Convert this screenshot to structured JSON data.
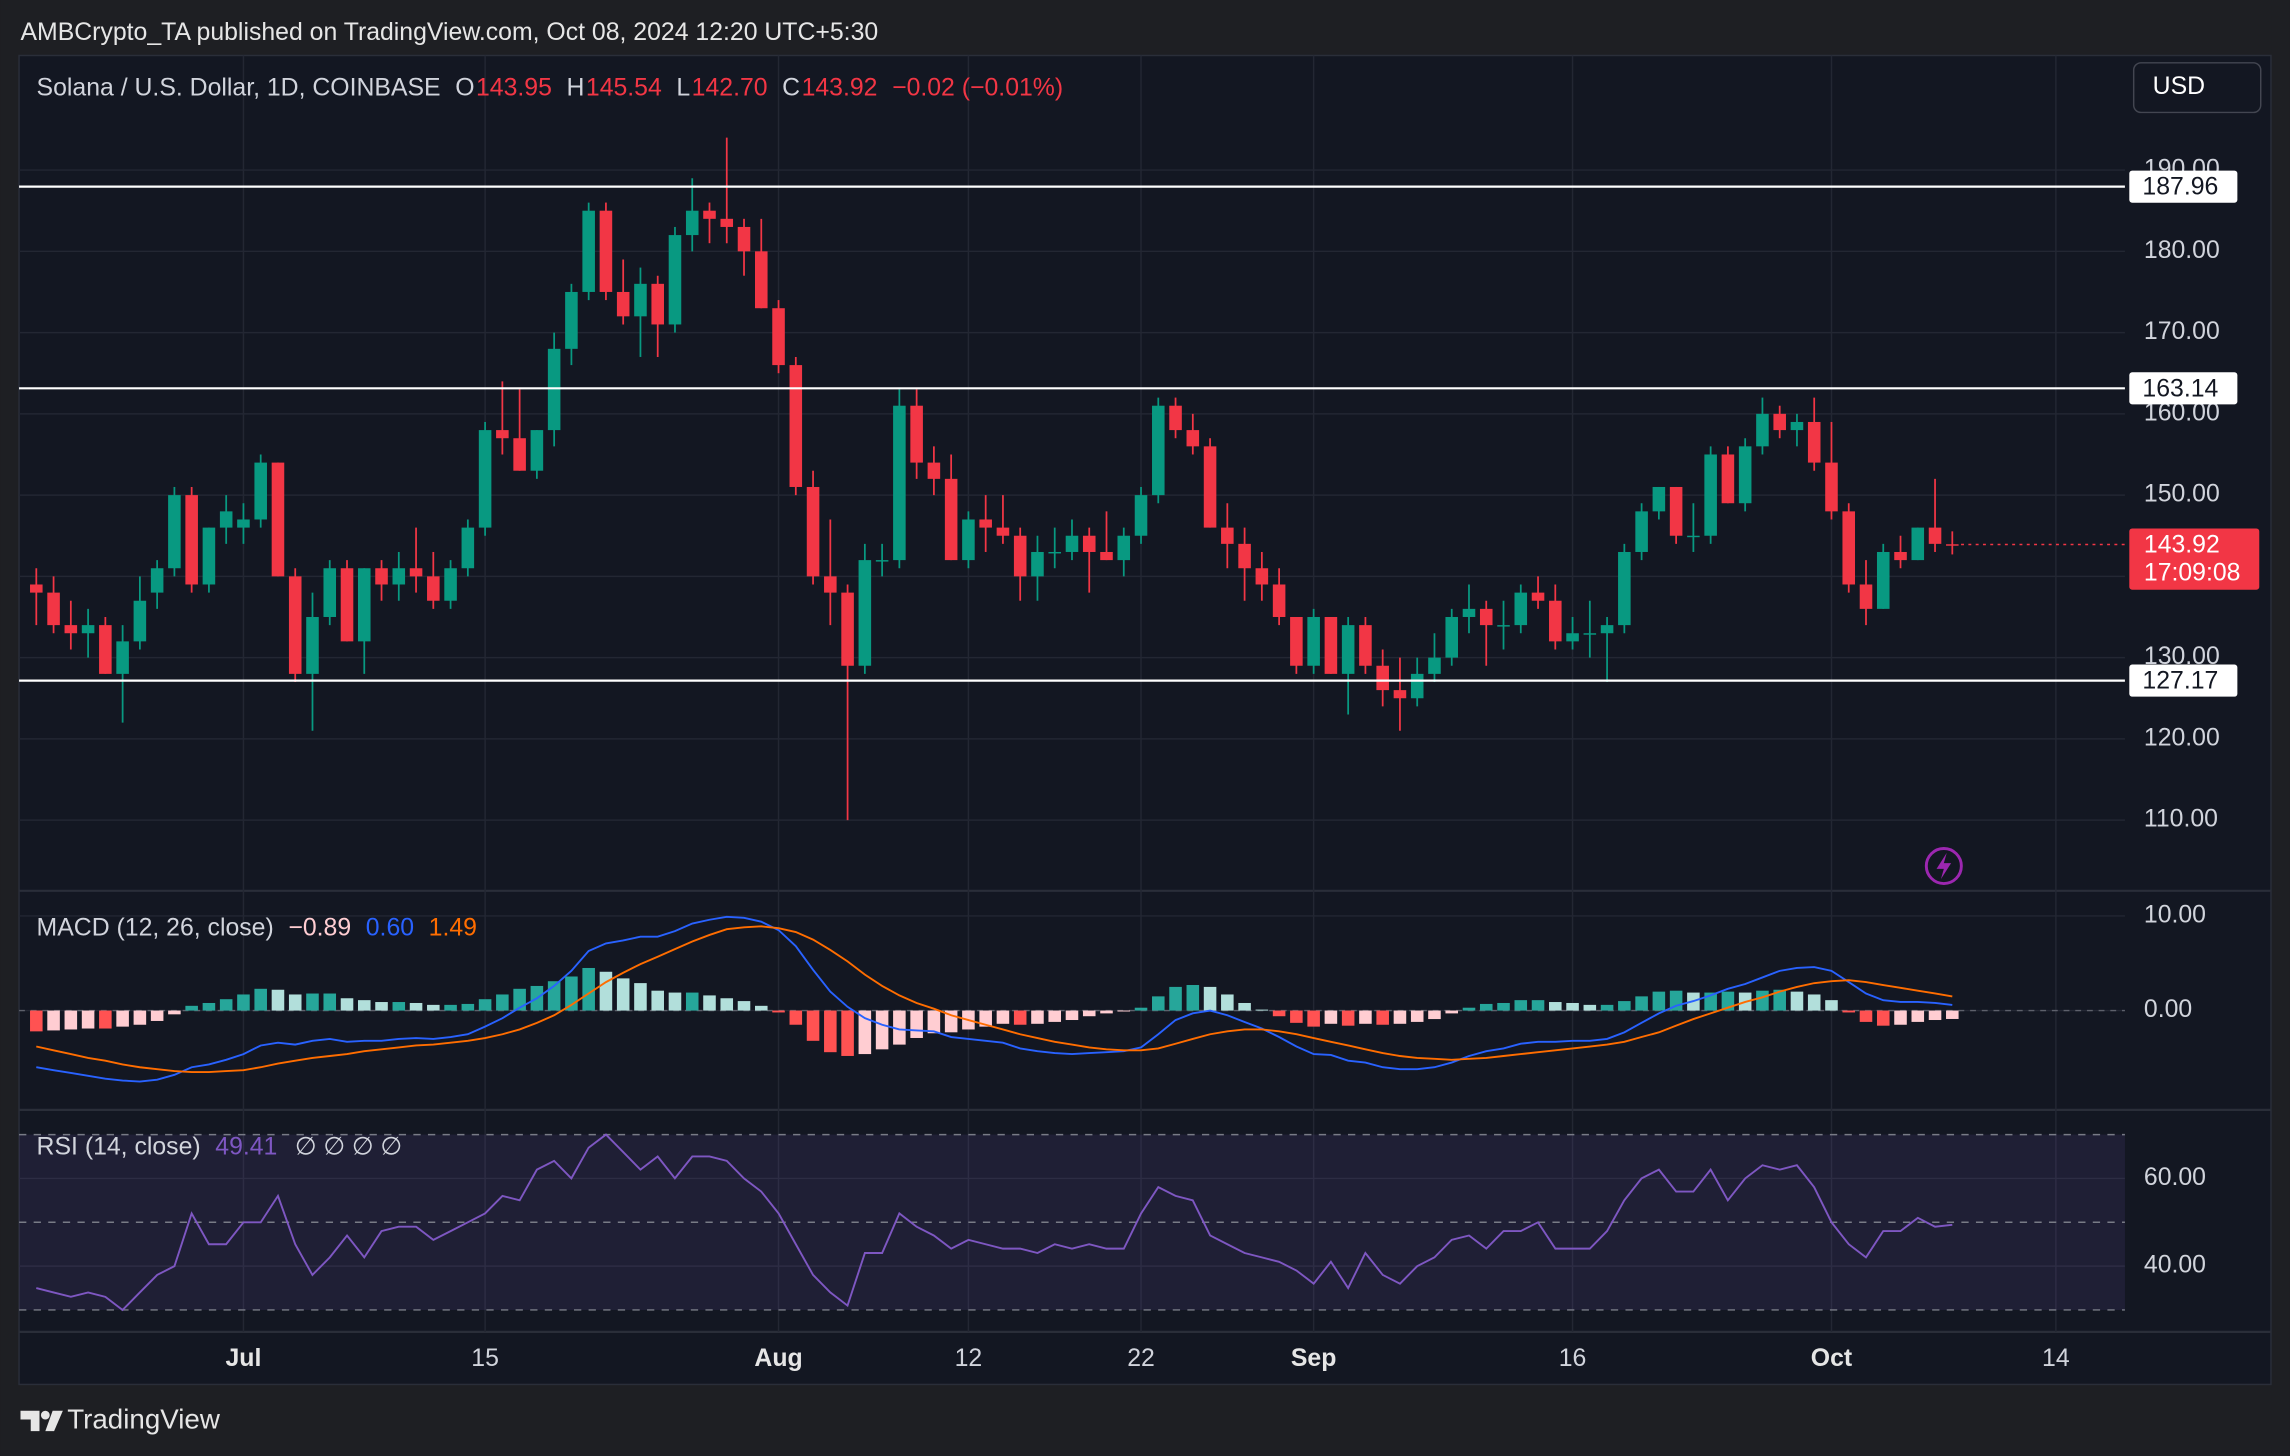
{
  "header": "AMBCrypto_TA published on TradingView.com, Oct 08, 2024 12:20 UTC+5:30",
  "currency_button": "USD",
  "brand": "TradingView",
  "chart_data": [
    {
      "type": "candlestick",
      "legend": {
        "symbol": "Solana / U.S. Dollar, 1D, COINBASE",
        "fields": [
          {
            "key": "O",
            "label": "143.95"
          },
          {
            "key": "H",
            "label": "145.54"
          },
          {
            "key": "L",
            "label": "142.70"
          },
          {
            "key": "C",
            "label": "143.92"
          }
        ],
        "change": "−0.02 (−0.01%)",
        "value_color": "#f23645"
      },
      "x": [
        "2024-06-19",
        "2024-06-20",
        "2024-06-21",
        "2024-06-22",
        "2024-06-23",
        "2024-06-24",
        "2024-06-25",
        "2024-06-26",
        "2024-06-27",
        "2024-06-28",
        "2024-06-29",
        "2024-06-30",
        "2024-07-01",
        "2024-07-02",
        "2024-07-03",
        "2024-07-04",
        "2024-07-05",
        "2024-07-06",
        "2024-07-07",
        "2024-07-08",
        "2024-07-09",
        "2024-07-10",
        "2024-07-11",
        "2024-07-12",
        "2024-07-13",
        "2024-07-14",
        "2024-07-15",
        "2024-07-16",
        "2024-07-17",
        "2024-07-18",
        "2024-07-19",
        "2024-07-20",
        "2024-07-21",
        "2024-07-22",
        "2024-07-23",
        "2024-07-24",
        "2024-07-25",
        "2024-07-26",
        "2024-07-27",
        "2024-07-28",
        "2024-07-29",
        "2024-07-30",
        "2024-07-31",
        "2024-08-01",
        "2024-08-02",
        "2024-08-03",
        "2024-08-04",
        "2024-08-05",
        "2024-08-06",
        "2024-08-07",
        "2024-08-08",
        "2024-08-09",
        "2024-08-10",
        "2024-08-11",
        "2024-08-12",
        "2024-08-13",
        "2024-08-14",
        "2024-08-15",
        "2024-08-16",
        "2024-08-17",
        "2024-08-18",
        "2024-08-19",
        "2024-08-20",
        "2024-08-21",
        "2024-08-22",
        "2024-08-23",
        "2024-08-24",
        "2024-08-25",
        "2024-08-26",
        "2024-08-27",
        "2024-08-28",
        "2024-08-29",
        "2024-08-30",
        "2024-08-31",
        "2024-09-01",
        "2024-09-02",
        "2024-09-03",
        "2024-09-04",
        "2024-09-05",
        "2024-09-06",
        "2024-09-07",
        "2024-09-08",
        "2024-09-09",
        "2024-09-10",
        "2024-09-11",
        "2024-09-12",
        "2024-09-13",
        "2024-09-14",
        "2024-09-15",
        "2024-09-16",
        "2024-09-17",
        "2024-09-18",
        "2024-09-19",
        "2024-09-20",
        "2024-09-21",
        "2024-09-22",
        "2024-09-23",
        "2024-09-24",
        "2024-09-25",
        "2024-09-26",
        "2024-09-27",
        "2024-09-28",
        "2024-09-29",
        "2024-09-30",
        "2024-10-01",
        "2024-10-02",
        "2024-10-03",
        "2024-10-04",
        "2024-10-05",
        "2024-10-06",
        "2024-10-07",
        "2024-10-08"
      ],
      "open": [
        139,
        138,
        134,
        133,
        134,
        128,
        132,
        138,
        141,
        150,
        139,
        146,
        146,
        147,
        154,
        140,
        128,
        135,
        141,
        132,
        141,
        139,
        141,
        140,
        137,
        141,
        146,
        158,
        157,
        153,
        158,
        168,
        175,
        185,
        175,
        172,
        176,
        171,
        182,
        185,
        184,
        183,
        180,
        173,
        166,
        151,
        140,
        138,
        129,
        142,
        142,
        161,
        154,
        152,
        142,
        147,
        146,
        145,
        140,
        143,
        143,
        145,
        143,
        142,
        145,
        150,
        161,
        158,
        156,
        146,
        144,
        141,
        139,
        135,
        129,
        135,
        128,
        134,
        129,
        126,
        125,
        128,
        130,
        135,
        136,
        134,
        134,
        138,
        137,
        132,
        133,
        133,
        134,
        143,
        148,
        151,
        145,
        145,
        155,
        149,
        156,
        160,
        158,
        159,
        154,
        148,
        139,
        136,
        143,
        142,
        146,
        143.95
      ],
      "high": [
        141,
        140,
        137,
        136,
        135,
        134,
        140,
        142,
        151,
        151,
        146,
        150,
        149,
        155,
        154,
        141,
        138,
        142,
        142,
        141,
        142,
        143,
        146,
        143,
        142,
        147,
        159,
        164,
        163,
        158,
        170,
        176,
        186,
        186,
        179,
        178,
        177,
        183,
        189,
        186,
        194,
        184,
        184,
        174,
        167,
        153,
        147,
        139,
        144,
        144,
        163,
        163,
        156,
        155,
        148,
        150,
        150,
        146,
        145,
        146,
        147,
        146,
        148,
        146,
        151,
        162,
        162,
        160,
        157,
        149,
        146,
        143,
        141,
        135,
        136,
        135,
        135,
        135,
        131,
        130,
        130,
        133,
        136,
        139,
        137,
        137,
        139,
        140,
        139,
        135,
        137,
        135,
        144,
        149,
        151,
        151,
        149,
        156,
        156,
        157,
        162,
        161,
        160,
        162,
        159,
        149,
        142,
        144,
        145,
        146,
        152,
        145.54
      ],
      "low": [
        134,
        133,
        131,
        130,
        128,
        122,
        131,
        136,
        140,
        138,
        138,
        144,
        144,
        146,
        140,
        127,
        121,
        134,
        132,
        128,
        137,
        137,
        138,
        136,
        136,
        140,
        145,
        155,
        153,
        152,
        156,
        166,
        174,
        174,
        171,
        167,
        167,
        170,
        180,
        181,
        181,
        177,
        173,
        165,
        150,
        139,
        134,
        110,
        128,
        140,
        141,
        152,
        150,
        142,
        141,
        143,
        144,
        137,
        137,
        141,
        142,
        138,
        142,
        140,
        144,
        149,
        157,
        155,
        146,
        141,
        137,
        137,
        134,
        128,
        128,
        128,
        123,
        128,
        124,
        121,
        124,
        127,
        129,
        133,
        129,
        131,
        133,
        136,
        131,
        131,
        130,
        127,
        133,
        142,
        147,
        144,
        143,
        144,
        149,
        148,
        155,
        157,
        156,
        153,
        147,
        138,
        134,
        136,
        141,
        142,
        143,
        142.7
      ],
      "close": [
        138,
        134,
        133,
        134,
        128,
        132,
        137,
        141,
        150,
        139,
        146,
        148,
        147,
        154,
        140,
        128,
        135,
        141,
        132,
        141,
        139,
        141,
        140,
        137,
        141,
        146,
        158,
        157,
        153,
        158,
        168,
        175,
        185,
        175,
        172,
        176,
        171,
        182,
        185,
        184,
        183,
        180,
        173,
        166,
        151,
        140,
        138,
        129,
        142,
        142,
        161,
        154,
        152,
        142,
        147,
        146,
        145,
        140,
        143,
        143,
        145,
        143,
        142,
        145,
        150,
        161,
        158,
        156,
        146,
        144,
        141,
        139,
        135,
        129,
        135,
        128,
        134,
        129,
        126,
        125,
        128,
        130,
        135,
        136,
        134,
        134,
        138,
        137,
        132,
        133,
        133,
        134,
        143,
        148,
        151,
        145,
        145,
        155,
        149,
        156,
        160,
        158,
        159,
        154,
        148,
        139,
        136,
        143,
        142,
        146,
        144,
        143.92
      ],
      "up_color": "#089981",
      "down_color": "#f23645",
      "countdown": "17:09:08",
      "levels": [
        187.96,
        163.14,
        127.17
      ],
      "level_color": "#ffffff",
      "xlim": [
        "2024-06-18",
        "2024-10-18"
      ],
      "xticks": [
        {
          "value": "2024-07-01",
          "label": "Jul"
        },
        {
          "value": "2024-07-15",
          "label": "15"
        },
        {
          "value": "2024-08-01",
          "label": "Aug"
        },
        {
          "value": "2024-08-12",
          "label": "12"
        },
        {
          "value": "2024-08-22",
          "label": "22"
        },
        {
          "value": "2024-09-01",
          "label": "Sep"
        },
        {
          "value": "2024-09-16",
          "label": "16"
        },
        {
          "value": "2024-10-01",
          "label": "Oct"
        },
        {
          "value": "2024-10-14",
          "label": "14"
        }
      ],
      "ylim": [
        101.3,
        204.1
      ],
      "yticks": [
        {
          "value": 110,
          "label": "110.00"
        },
        {
          "value": 120,
          "label": "120.00"
        },
        {
          "value": 130,
          "label": "130.00"
        },
        {
          "value": 140,
          "label": "140.00"
        },
        {
          "value": 150,
          "label": "150.00"
        },
        {
          "value": 160,
          "label": "160.00"
        },
        {
          "value": 170,
          "label": "170.00"
        },
        {
          "value": 180,
          "label": "180.00"
        },
        {
          "value": 190,
          "label": "190.00"
        }
      ],
      "grid": true
    },
    {
      "type": "macd",
      "title": "MACD (12, 26, close)",
      "legend_labels": [
        "−0.89",
        "0.60",
        "1.49"
      ],
      "series": [
        {
          "colors": [
            "#26a69a",
            "#b2dfdb",
            "#ff5252",
            "#ffcdd2"
          ],
          "values": [
            -2.2,
            -2.1,
            -2.0,
            -1.9,
            -1.9,
            -1.7,
            -1.5,
            -1.1,
            -0.4,
            0.5,
            0.8,
            1.2,
            1.7,
            2.3,
            2.2,
            1.7,
            1.8,
            1.8,
            1.3,
            1.1,
            0.9,
            0.9,
            0.8,
            0.6,
            0.6,
            0.7,
            1.2,
            1.7,
            2.3,
            2.6,
            3.1,
            3.6,
            4.5,
            4.1,
            3.4,
            2.9,
            2.1,
            1.9,
            1.9,
            1.6,
            1.3,
            1.0,
            0.5,
            -0.2,
            -1.5,
            -3.2,
            -4.4,
            -4.8,
            -4.6,
            -4.1,
            -3.6,
            -2.9,
            -2.4,
            -2.3,
            -2.0,
            -1.7,
            -1.4,
            -1.5,
            -1.4,
            -1.2,
            -1.0,
            -0.6,
            -0.3,
            -0.1,
            0.3,
            1.5,
            2.5,
            2.7,
            2.5,
            1.7,
            0.8,
            0.1,
            -0.6,
            -1.3,
            -1.7,
            -1.4,
            -1.6,
            -1.4,
            -1.5,
            -1.4,
            -1.2,
            -0.9,
            -0.3,
            0.3,
            0.7,
            0.8,
            1.1,
            1.1,
            0.9,
            0.8,
            0.6,
            0.6,
            1.0,
            1.5,
            2.0,
            2.1,
            1.9,
            1.9,
            2.0,
            1.9,
            2.1,
            2.2,
            2.0,
            1.7,
            1.1,
            -0.2,
            -1.2,
            -1.6,
            -1.5,
            -1.2,
            -1.0,
            -0.89
          ]
        },
        {
          "color": "#2962ff",
          "values": [
            -6,
            -6.3,
            -6.6,
            -6.9,
            -7.2,
            -7.4,
            -7.5,
            -7.3,
            -6.8,
            -6,
            -5.7,
            -5.2,
            -4.6,
            -3.7,
            -3.4,
            -3.6,
            -3.2,
            -3.0,
            -3.3,
            -3.2,
            -3.2,
            -3.0,
            -2.9,
            -3.0,
            -2.8,
            -2.5,
            -1.7,
            -0.8,
            0.3,
            1.3,
            2.6,
            4.2,
            6.3,
            7.1,
            7.4,
            7.8,
            7.8,
            8.4,
            9.2,
            9.6,
            9.9,
            9.8,
            9.4,
            8.5,
            6.8,
            4.3,
            2.0,
            0.4,
            -0.8,
            -1.5,
            -2.0,
            -2.1,
            -2.2,
            -2.8,
            -3.0,
            -3.2,
            -3.4,
            -4,
            -4.3,
            -4.5,
            -4.6,
            -4.5,
            -4.4,
            -4.3,
            -3.9,
            -2.5,
            -1.0,
            -0.3,
            0.0,
            -0.5,
            -1.2,
            -1.9,
            -2.8,
            -3.8,
            -4.6,
            -4.7,
            -5.3,
            -5.5,
            -6.0,
            -6.2,
            -6.2,
            -6.0,
            -5.5,
            -4.8,
            -4.3,
            -4.0,
            -3.5,
            -3.3,
            -3.3,
            -3.2,
            -3.2,
            -3.0,
            -2.3,
            -1.3,
            -0.3,
            0.5,
            1.0,
            1.6,
            2.3,
            2.8,
            3.5,
            4.2,
            4.5,
            4.6,
            4.2,
            3.0,
            1.8,
            1.1,
            0.9,
            0.9,
            0.8,
            0.6
          ]
        },
        {
          "color": "#ff6d00",
          "values": [
            -3.8,
            -4.2,
            -4.6,
            -5.0,
            -5.3,
            -5.7,
            -6.0,
            -6.2,
            -6.4,
            -6.5,
            -6.5,
            -6.4,
            -6.3,
            -6.0,
            -5.6,
            -5.3,
            -5.0,
            -4.8,
            -4.6,
            -4.3,
            -4.1,
            -3.9,
            -3.7,
            -3.6,
            -3.4,
            -3.2,
            -2.9,
            -2.5,
            -2.0,
            -1.3,
            -0.5,
            0.6,
            1.8,
            3.0,
            4.0,
            4.9,
            5.7,
            6.5,
            7.3,
            8.0,
            8.6,
            8.8,
            8.9,
            8.7,
            8.3,
            7.5,
            6.4,
            5.2,
            3.8,
            2.6,
            1.6,
            0.8,
            0.2,
            -0.5,
            -1.0,
            -1.5,
            -2.0,
            -2.5,
            -2.9,
            -3.3,
            -3.6,
            -3.9,
            -4.1,
            -4.2,
            -4.2,
            -4.0,
            -3.5,
            -3.0,
            -2.5,
            -2.2,
            -2.0,
            -2.0,
            -2.2,
            -2.5,
            -2.9,
            -3.3,
            -3.7,
            -4.1,
            -4.5,
            -4.8,
            -5.0,
            -5.1,
            -5.2,
            -5.1,
            -5.0,
            -4.8,
            -4.6,
            -4.4,
            -4.2,
            -4.0,
            -3.8,
            -3.6,
            -3.3,
            -2.8,
            -2.3,
            -1.6,
            -0.9,
            -0.3,
            0.3,
            0.9,
            1.4,
            2.0,
            2.5,
            2.9,
            3.1,
            3.2,
            3.0,
            2.7,
            2.4,
            2.1,
            1.8,
            1.49
          ]
        }
      ],
      "ylim": [
        -10.5,
        12.5
      ],
      "yticks": [
        {
          "value": 0,
          "label": "0.00"
        },
        {
          "value": 10,
          "label": "10.00"
        }
      ]
    },
    {
      "type": "rsi",
      "title": "RSI (14, close)",
      "legend_extra": "∅ ∅ ∅ ∅",
      "color": "#7e57c2",
      "values": [
        35,
        34,
        33,
        34,
        33,
        30,
        34,
        38,
        40,
        52,
        45,
        45,
        50,
        50,
        56,
        45,
        38,
        42,
        47,
        42,
        48,
        49,
        49,
        46,
        48,
        50,
        52,
        56,
        55,
        62,
        64,
        60,
        67,
        70,
        66,
        62,
        65,
        60,
        65,
        65,
        64,
        60,
        57,
        52,
        45,
        38,
        34,
        31,
        43,
        43,
        52,
        49,
        47,
        44,
        46,
        45,
        44,
        44,
        43,
        45,
        44,
        45,
        44,
        44,
        52,
        58,
        56,
        55,
        47,
        45,
        43,
        42,
        41,
        39,
        36,
        41,
        35,
        43,
        38,
        36,
        40,
        42,
        46,
        47,
        44,
        48,
        48,
        50,
        44,
        44,
        44,
        48,
        55,
        60,
        62,
        57,
        57,
        62,
        55,
        60,
        63,
        62,
        63,
        58,
        50,
        45,
        42,
        48,
        48,
        51,
        49,
        49.41
      ],
      "bands": [
        30,
        50,
        70
      ],
      "ylim": [
        25,
        75.3
      ],
      "yticks": [
        {
          "value": 40,
          "label": "40.00"
        },
        {
          "value": 60,
          "label": "60.00"
        }
      ]
    }
  ]
}
